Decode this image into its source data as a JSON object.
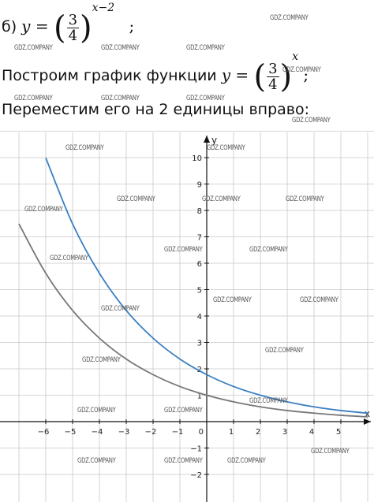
{
  "line1": {
    "prefix": "б) ",
    "var_y": "y",
    "eq": " = ",
    "num": "3",
    "den": "4",
    "exponent": "x−2",
    "end": " ;"
  },
  "line2": {
    "text": "Построим график функции ",
    "var_y": "y",
    "eq": " = ",
    "num": "3",
    "den": "4",
    "exponent": "x",
    "end": " ;"
  },
  "line3": {
    "text": "Переместим его на 2 единицы вправо:"
  },
  "watermark": "GDZ.COMPANY",
  "chart_data": {
    "type": "line",
    "xlabel": "x",
    "ylabel": "y",
    "xlim": [
      -7.6,
      6.0
    ],
    "ylim": [
      -2.5,
      11.0
    ],
    "x_ticks": [
      -6,
      -5,
      -4,
      -3,
      -2,
      -1,
      1,
      2,
      3,
      4,
      5
    ],
    "y_ticks": [
      -2,
      -1,
      1,
      2,
      3,
      4,
      5,
      6,
      7,
      8,
      9,
      10
    ],
    "origin_label": "0",
    "series": [
      {
        "formula": "(3/4)^x",
        "color": "#777777",
        "x": [
          -7,
          -6,
          -5,
          -4,
          -3,
          -2,
          -1,
          0,
          1,
          2,
          3,
          4,
          5,
          6
        ],
        "y": [
          7.49,
          5.62,
          4.21,
          3.16,
          2.37,
          1.78,
          1.33,
          1.0,
          0.75,
          0.56,
          0.42,
          0.32,
          0.24,
          0.18
        ]
      },
      {
        "formula": "(3/4)^(x-2)",
        "color": "#3a7fc1",
        "x": [
          -6,
          -5,
          -4,
          -3,
          -2,
          -1,
          0,
          1,
          2,
          3,
          4,
          5,
          6
        ],
        "y": [
          9.99,
          7.49,
          5.62,
          4.21,
          3.16,
          2.37,
          1.78,
          1.33,
          1.0,
          0.75,
          0.56,
          0.42,
          0.32
        ]
      }
    ]
  }
}
